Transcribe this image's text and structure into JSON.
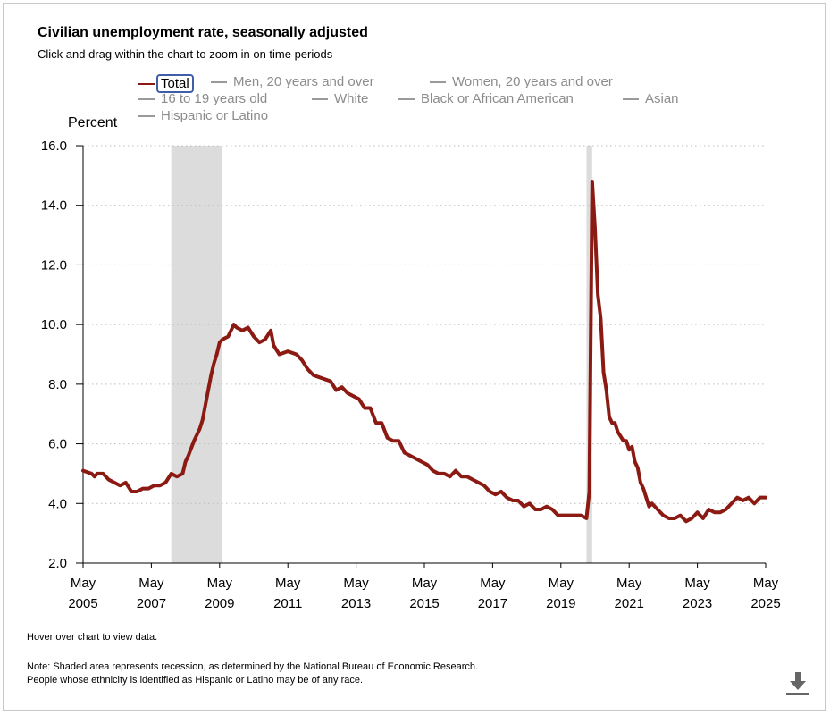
{
  "title": "Civilian unemployment rate, seasonally adjusted",
  "subtitle": "Click and drag within the chart to zoom in on time periods",
  "legend": [
    {
      "label": "Total",
      "active": true
    },
    {
      "label": "Men, 20 years and over",
      "active": false
    },
    {
      "label": "Women, 20 years and over",
      "active": false
    },
    {
      "label": "16 to 19 years old",
      "active": false
    },
    {
      "label": "White",
      "active": false
    },
    {
      "label": "Black or African American",
      "active": false
    },
    {
      "label": "Asian",
      "active": false
    },
    {
      "label": "Hispanic or Latino",
      "active": false
    }
  ],
  "hover_note": "Hover over chart to view data.",
  "note_line1": "Note: Shaded area represents recession, as determined by the National Bureau of Economic Research.",
  "note_line2": "People whose ethnicity is identified as Hispanic or Latino may be of any race.",
  "download_icon": "download-icon",
  "colors": {
    "series": "#8b1a13",
    "recession": "#dcdcdc",
    "grid": "#bdbdbd",
    "axis": "#000000"
  },
  "chart_data": {
    "type": "line",
    "ylabel": "Percent",
    "ylim": [
      2.0,
      16.0
    ],
    "yticks": [
      "2.0",
      "4.0",
      "6.0",
      "8.0",
      "10.0",
      "12.0",
      "14.0",
      "16.0"
    ],
    "xlim": [
      "2005-05",
      "2025-05"
    ],
    "xticks": [
      {
        "month": "May",
        "year": "2005",
        "date": "2005-05"
      },
      {
        "month": "May",
        "year": "2007",
        "date": "2007-05"
      },
      {
        "month": "May",
        "year": "2009",
        "date": "2009-05"
      },
      {
        "month": "May",
        "year": "2011",
        "date": "2011-05"
      },
      {
        "month": "May",
        "year": "2013",
        "date": "2013-05"
      },
      {
        "month": "May",
        "year": "2015",
        "date": "2015-05"
      },
      {
        "month": "May",
        "year": "2017",
        "date": "2017-05"
      },
      {
        "month": "May",
        "year": "2019",
        "date": "2019-05"
      },
      {
        "month": "May",
        "year": "2021",
        "date": "2021-05"
      },
      {
        "month": "May",
        "year": "2023",
        "date": "2023-05"
      },
      {
        "month": "May",
        "year": "2025",
        "date": "2025-05"
      }
    ],
    "grid": "horizontal dotted",
    "recessions": [
      {
        "start": "2007-12",
        "end": "2009-06"
      },
      {
        "start": "2020-02",
        "end": "2020-04"
      }
    ],
    "series": [
      {
        "name": "Total",
        "points": [
          [
            "2005-05",
            5.1
          ],
          [
            "2005-08",
            5.0
          ],
          [
            "2005-09",
            4.9
          ],
          [
            "2005-10",
            5.0
          ],
          [
            "2005-12",
            5.0
          ],
          [
            "2006-02",
            4.8
          ],
          [
            "2006-04",
            4.7
          ],
          [
            "2006-06",
            4.6
          ],
          [
            "2006-08",
            4.7
          ],
          [
            "2006-10",
            4.4
          ],
          [
            "2006-12",
            4.4
          ],
          [
            "2007-02",
            4.5
          ],
          [
            "2007-04",
            4.5
          ],
          [
            "2007-06",
            4.6
          ],
          [
            "2007-08",
            4.6
          ],
          [
            "2007-10",
            4.7
          ],
          [
            "2007-12",
            5.0
          ],
          [
            "2008-02",
            4.9
          ],
          [
            "2008-04",
            5.0
          ],
          [
            "2008-05",
            5.4
          ],
          [
            "2008-06",
            5.6
          ],
          [
            "2008-08",
            6.1
          ],
          [
            "2008-10",
            6.5
          ],
          [
            "2008-11",
            6.8
          ],
          [
            "2008-12",
            7.3
          ],
          [
            "2009-01",
            7.8
          ],
          [
            "2009-02",
            8.3
          ],
          [
            "2009-03",
            8.7
          ],
          [
            "2009-04",
            9.0
          ],
          [
            "2009-05",
            9.4
          ],
          [
            "2009-06",
            9.5
          ],
          [
            "2009-08",
            9.6
          ],
          [
            "2009-09",
            9.8
          ],
          [
            "2009-10",
            10.0
          ],
          [
            "2009-11",
            9.9
          ],
          [
            "2010-01",
            9.8
          ],
          [
            "2010-03",
            9.9
          ],
          [
            "2010-05",
            9.6
          ],
          [
            "2010-07",
            9.4
          ],
          [
            "2010-09",
            9.5
          ],
          [
            "2010-11",
            9.8
          ],
          [
            "2010-12",
            9.3
          ],
          [
            "2011-02",
            9.0
          ],
          [
            "2011-05",
            9.1
          ],
          [
            "2011-08",
            9.0
          ],
          [
            "2011-10",
            8.8
          ],
          [
            "2011-12",
            8.5
          ],
          [
            "2012-02",
            8.3
          ],
          [
            "2012-05",
            8.2
          ],
          [
            "2012-08",
            8.1
          ],
          [
            "2012-10",
            7.8
          ],
          [
            "2012-12",
            7.9
          ],
          [
            "2013-02",
            7.7
          ],
          [
            "2013-04",
            7.6
          ],
          [
            "2013-06",
            7.5
          ],
          [
            "2013-08",
            7.2
          ],
          [
            "2013-10",
            7.2
          ],
          [
            "2013-12",
            6.7
          ],
          [
            "2014-02",
            6.7
          ],
          [
            "2014-04",
            6.2
          ],
          [
            "2014-06",
            6.1
          ],
          [
            "2014-08",
            6.1
          ],
          [
            "2014-10",
            5.7
          ],
          [
            "2014-12",
            5.6
          ],
          [
            "2015-02",
            5.5
          ],
          [
            "2015-04",
            5.4
          ],
          [
            "2015-06",
            5.3
          ],
          [
            "2015-08",
            5.1
          ],
          [
            "2015-10",
            5.0
          ],
          [
            "2015-12",
            5.0
          ],
          [
            "2016-02",
            4.9
          ],
          [
            "2016-04",
            5.1
          ],
          [
            "2016-06",
            4.9
          ],
          [
            "2016-08",
            4.9
          ],
          [
            "2016-10",
            4.8
          ],
          [
            "2016-12",
            4.7
          ],
          [
            "2017-02",
            4.6
          ],
          [
            "2017-04",
            4.4
          ],
          [
            "2017-06",
            4.3
          ],
          [
            "2017-08",
            4.4
          ],
          [
            "2017-10",
            4.2
          ],
          [
            "2017-12",
            4.1
          ],
          [
            "2018-02",
            4.1
          ],
          [
            "2018-04",
            3.9
          ],
          [
            "2018-06",
            4.0
          ],
          [
            "2018-08",
            3.8
          ],
          [
            "2018-10",
            3.8
          ],
          [
            "2018-12",
            3.9
          ],
          [
            "2019-02",
            3.8
          ],
          [
            "2019-04",
            3.6
          ],
          [
            "2019-06",
            3.6
          ],
          [
            "2019-08",
            3.6
          ],
          [
            "2019-10",
            3.6
          ],
          [
            "2019-12",
            3.6
          ],
          [
            "2020-02",
            3.5
          ],
          [
            "2020-03",
            4.4
          ],
          [
            "2020-04",
            14.8
          ],
          [
            "2020-05",
            13.2
          ],
          [
            "2020-06",
            11.0
          ],
          [
            "2020-07",
            10.2
          ],
          [
            "2020-08",
            8.4
          ],
          [
            "2020-09",
            7.8
          ],
          [
            "2020-10",
            6.9
          ],
          [
            "2020-11",
            6.7
          ],
          [
            "2020-12",
            6.7
          ],
          [
            "2021-01",
            6.4
          ],
          [
            "2021-03",
            6.1
          ],
          [
            "2021-04",
            6.1
          ],
          [
            "2021-05",
            5.8
          ],
          [
            "2021-06",
            5.9
          ],
          [
            "2021-07",
            5.4
          ],
          [
            "2021-08",
            5.2
          ],
          [
            "2021-09",
            4.7
          ],
          [
            "2021-10",
            4.5
          ],
          [
            "2021-11",
            4.2
          ],
          [
            "2021-12",
            3.9
          ],
          [
            "2022-01",
            4.0
          ],
          [
            "2022-03",
            3.8
          ],
          [
            "2022-05",
            3.6
          ],
          [
            "2022-07",
            3.5
          ],
          [
            "2022-09",
            3.5
          ],
          [
            "2022-11",
            3.6
          ],
          [
            "2023-01",
            3.4
          ],
          [
            "2023-03",
            3.5
          ],
          [
            "2023-05",
            3.7
          ],
          [
            "2023-07",
            3.5
          ],
          [
            "2023-09",
            3.8
          ],
          [
            "2023-11",
            3.7
          ],
          [
            "2024-01",
            3.7
          ],
          [
            "2024-03",
            3.8
          ],
          [
            "2024-05",
            4.0
          ],
          [
            "2024-07",
            4.2
          ],
          [
            "2024-09",
            4.1
          ],
          [
            "2024-11",
            4.2
          ],
          [
            "2025-01",
            4.0
          ],
          [
            "2025-03",
            4.2
          ],
          [
            "2025-05",
            4.2
          ]
        ]
      }
    ]
  }
}
